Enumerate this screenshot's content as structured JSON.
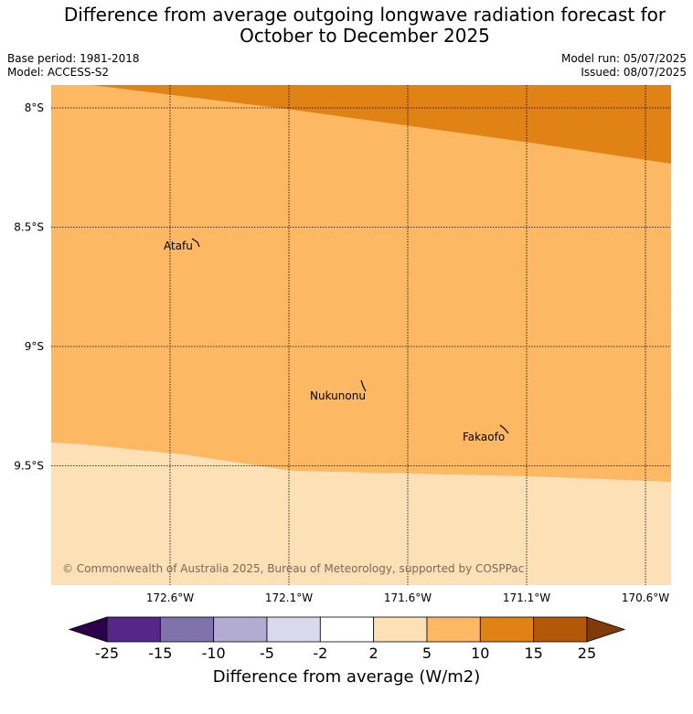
{
  "header": {
    "title_line1": "Difference from average outgoing longwave radiation forecast for",
    "title_line2": "October to December 2025",
    "base_period": "Base period: 1981-2018",
    "model": "Model: ACCESS-S2",
    "model_run": "Model run: 05/07/2025",
    "issued": "Issued: 08/07/2025"
  },
  "map": {
    "lat_labels": [
      "8°S",
      "8.5°S",
      "9°S",
      "9.5°S"
    ],
    "lat_values": [
      -8.0,
      -8.5,
      -9.0,
      -9.5
    ],
    "lon_labels": [
      "172.6°W",
      "172.1°W",
      "171.6°W",
      "171.1°W",
      "170.6°W"
    ],
    "lon_values": [
      -172.6,
      -172.1,
      -171.6,
      -171.1,
      -170.6
    ],
    "extent": {
      "lon_min": -173.1,
      "lon_max": -170.5,
      "lat_min": -10.0,
      "lat_max": -7.9
    },
    "places": [
      {
        "name": "Atafu",
        "lon": -172.51,
        "lat": -8.56
      },
      {
        "name": "Nukunonu",
        "lon": -171.81,
        "lat": -9.18
      },
      {
        "name": "Fakaofo",
        "lon": -171.22,
        "lat": -9.37
      }
    ],
    "regions": [
      {
        "category": "10 to 15",
        "color": "#e08214"
      },
      {
        "category": "5 to 10",
        "color": "#fdb863"
      },
      {
        "category": "2 to 5",
        "color": "#fee0b6"
      }
    ],
    "copyright": "© Commonwealth of Australia 2025, Bureau of Meteorology, supported by COSPPac"
  },
  "colorbar": {
    "ticks": [
      "-25",
      "-15",
      "-10",
      "-5",
      "-2",
      "2",
      "5",
      "10",
      "15",
      "25"
    ],
    "colors": [
      "#542788",
      "#8073ac",
      "#b2abd2",
      "#d8daeb",
      "#ffffff",
      "#fee0b6",
      "#fdb863",
      "#e08214",
      "#b35806"
    ],
    "under_color": "#2d004b",
    "over_color": "#7f3b08",
    "label": "Difference from average (W/m2)"
  }
}
